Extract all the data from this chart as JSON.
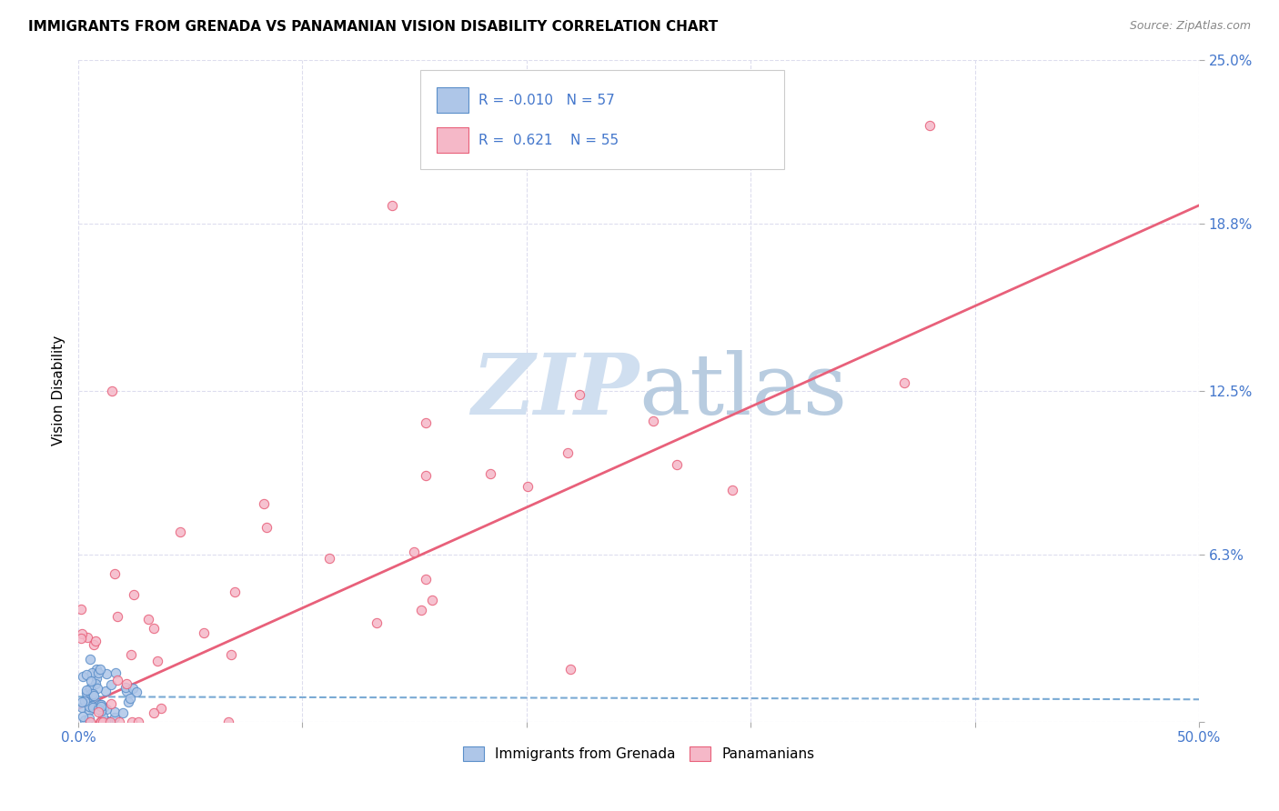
{
  "title": "IMMIGRANTS FROM GRENADA VS PANAMANIAN VISION DISABILITY CORRELATION CHART",
  "source": "Source: ZipAtlas.com",
  "ylabel": "Vision Disability",
  "xlim": [
    0.0,
    0.5
  ],
  "ylim": [
    0.0,
    0.25
  ],
  "xtick_positions": [
    0.0,
    0.1,
    0.2,
    0.3,
    0.4,
    0.5
  ],
  "xticklabels": [
    "0.0%",
    "",
    "",
    "",
    "",
    "50.0%"
  ],
  "ytick_positions": [
    0.0,
    0.063,
    0.125,
    0.188,
    0.25
  ],
  "ytick_labels": [
    "",
    "6.3%",
    "12.5%",
    "18.8%",
    "25.0%"
  ],
  "legend_blue_label": "Immigrants from Grenada",
  "legend_pink_label": "Panamanians",
  "R_blue": "-0.010",
  "N_blue": "57",
  "R_pink": "0.621",
  "N_pink": "55",
  "blue_fill": "#aec6e8",
  "blue_edge": "#5b8fc9",
  "pink_fill": "#f5b8c8",
  "pink_edge": "#e8607a",
  "blue_line_color": "#7aaad4",
  "pink_line_color": "#e8607a",
  "watermark_color": "#d0dff0",
  "tick_color": "#4477cc",
  "grid_color": "#ddddee",
  "title_fontsize": 11,
  "source_fontsize": 9,
  "tick_fontsize": 11,
  "ylabel_fontsize": 11
}
